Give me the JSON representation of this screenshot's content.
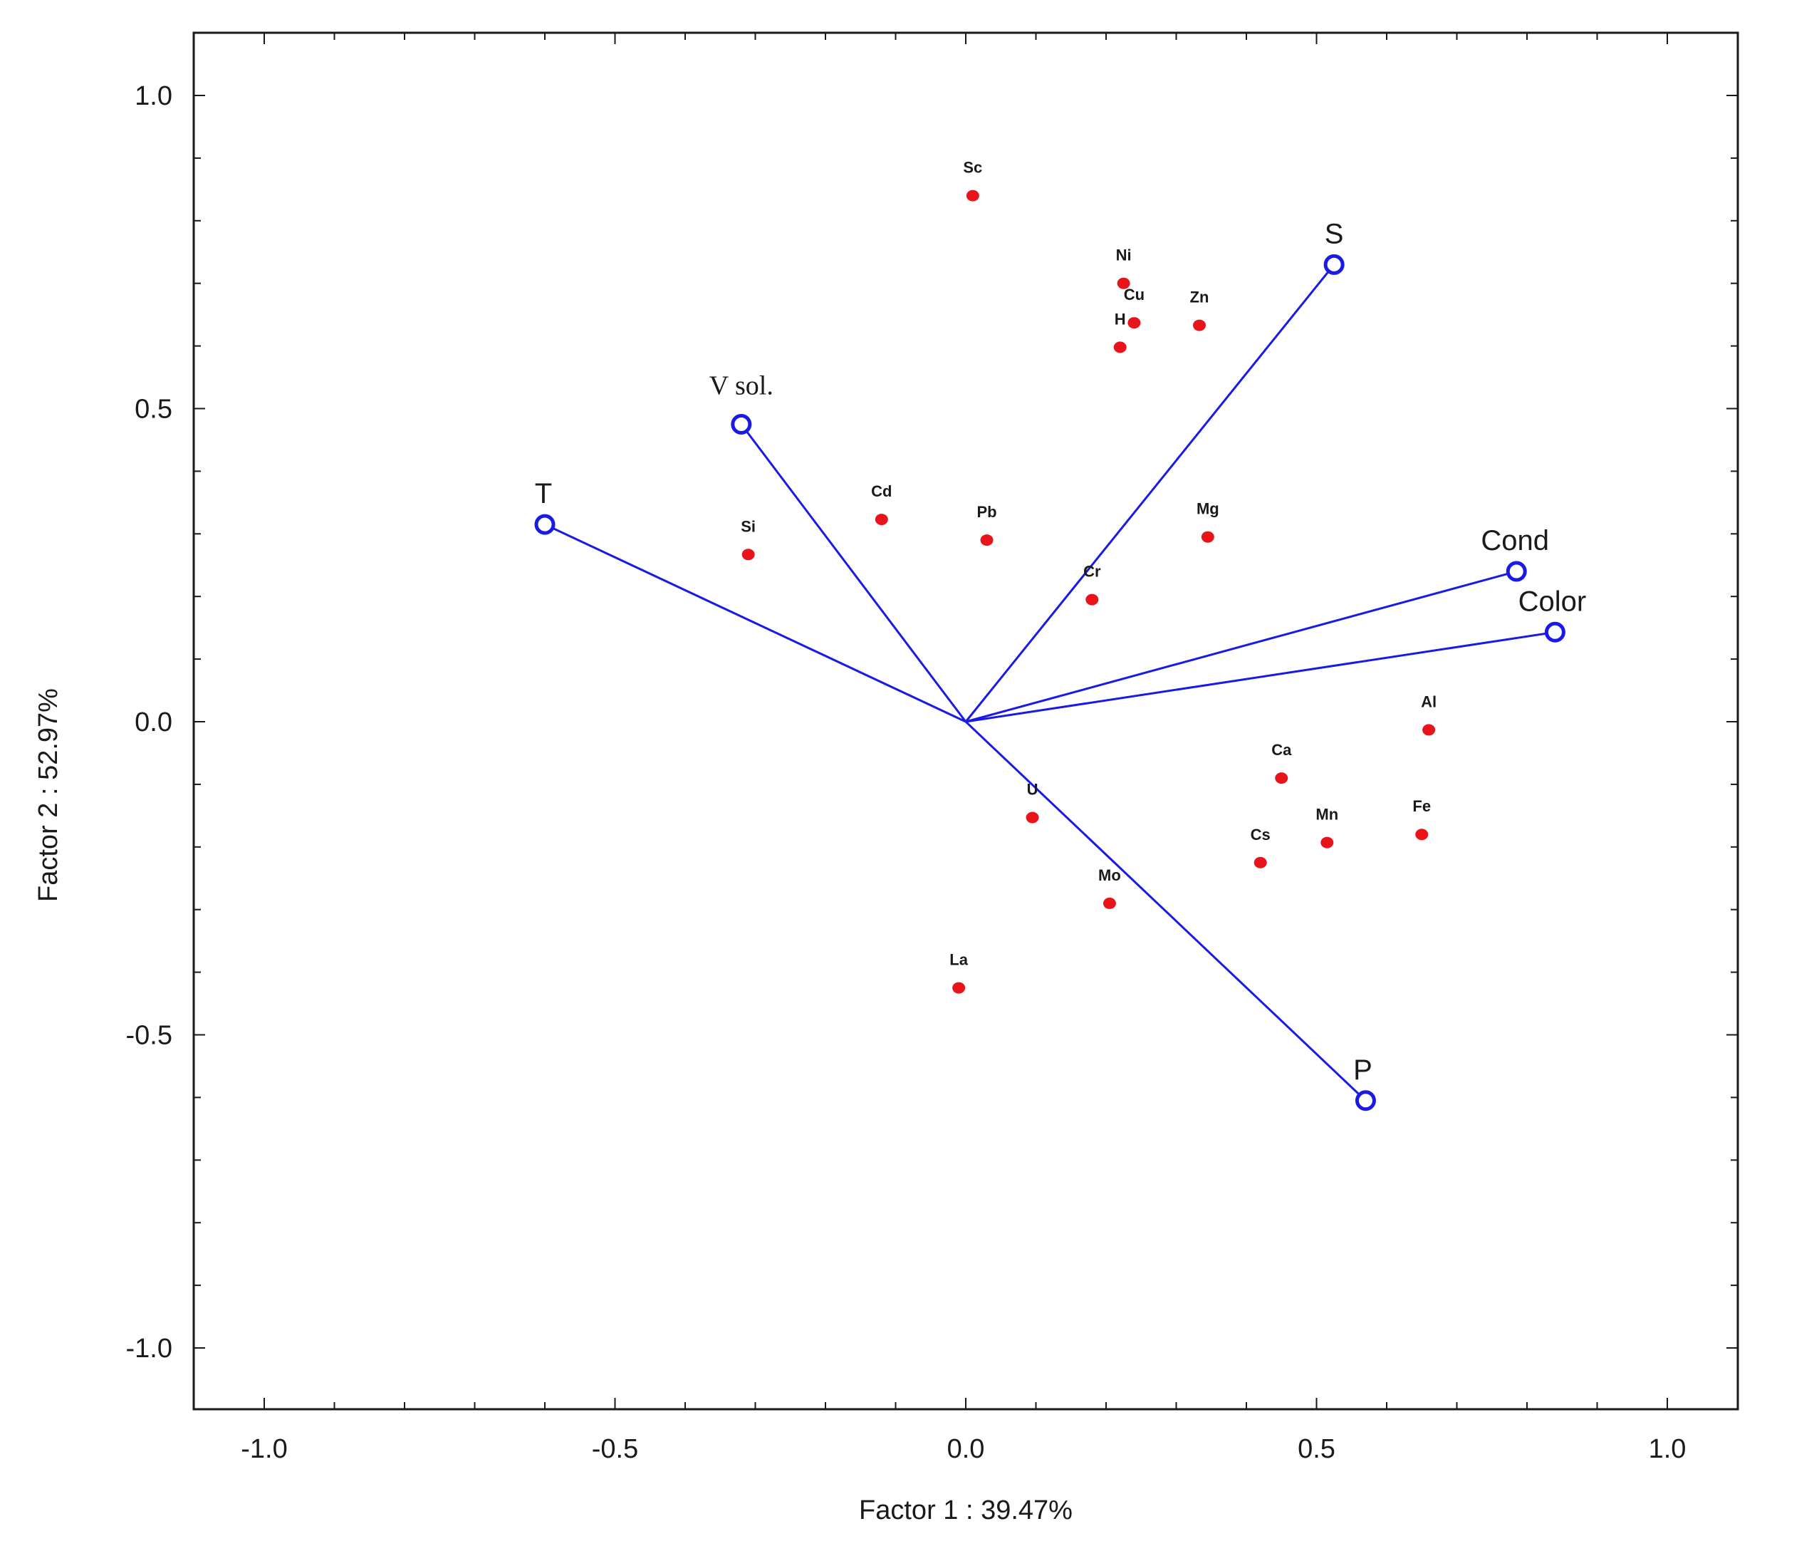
{
  "chart_data": {
    "type": "scatter",
    "subtype": "biplot",
    "xlabel": "Factor 1 : 39.47%",
    "ylabel": "Factor 2 : 52.97%",
    "xlim": [
      -1.1,
      1.1
    ],
    "ylim": [
      -1.1,
      1.1
    ],
    "xticks": [
      -1.0,
      -0.5,
      0.0,
      0.5,
      1.0
    ],
    "yticks": [
      1.0,
      0.5,
      0.0,
      -0.5,
      -1.0
    ],
    "xtick_labels": [
      "-1.0",
      "-0.5",
      "0.0",
      "0.5",
      "1.0"
    ],
    "ytick_labels": [
      "1.0",
      "0.5",
      "0.0",
      "-0.5",
      "-1.0"
    ],
    "grid": false,
    "colors": {
      "vectors": "#1a1ae6",
      "points": "#e8141a",
      "axes": "#1a1a1a"
    },
    "vectors": [
      {
        "label": "S",
        "x": 0.525,
        "y": 0.73
      },
      {
        "label": "V sol.",
        "x": -0.32,
        "y": 0.475
      },
      {
        "label": "T",
        "x": -0.6,
        "y": 0.315
      },
      {
        "label": "Cond",
        "x": 0.785,
        "y": 0.24
      },
      {
        "label": "Color",
        "x": 0.84,
        "y": 0.143
      },
      {
        "label": "P",
        "x": 0.57,
        "y": -0.605
      }
    ],
    "points": [
      {
        "label": "Sc",
        "x": 0.01,
        "y": 0.84
      },
      {
        "label": "Ni",
        "x": 0.225,
        "y": 0.7
      },
      {
        "label": "Cu",
        "x": 0.24,
        "y": 0.637
      },
      {
        "label": "Zn",
        "x": 0.333,
        "y": 0.633
      },
      {
        "label": "H",
        "x": 0.22,
        "y": 0.598
      },
      {
        "label": "Cd",
        "x": -0.12,
        "y": 0.323
      },
      {
        "label": "Si",
        "x": -0.31,
        "y": 0.267
      },
      {
        "label": "Pb",
        "x": 0.03,
        "y": 0.29
      },
      {
        "label": "Mg",
        "x": 0.345,
        "y": 0.295
      },
      {
        "label": "Cr",
        "x": 0.18,
        "y": 0.195
      },
      {
        "label": "Al",
        "x": 0.66,
        "y": -0.013
      },
      {
        "label": "Ca",
        "x": 0.45,
        "y": -0.09
      },
      {
        "label": "U",
        "x": 0.095,
        "y": -0.153
      },
      {
        "label": "Fe",
        "x": 0.65,
        "y": -0.18
      },
      {
        "label": "Mn",
        "x": 0.515,
        "y": -0.193
      },
      {
        "label": "Cs",
        "x": 0.42,
        "y": -0.225
      },
      {
        "label": "Mo",
        "x": 0.205,
        "y": -0.29
      },
      {
        "label": "La",
        "x": -0.01,
        "y": -0.425
      }
    ]
  }
}
